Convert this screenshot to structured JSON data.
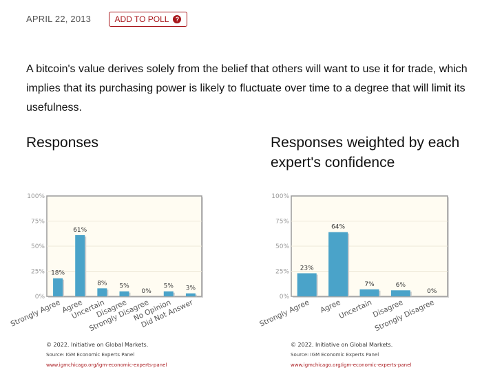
{
  "header": {
    "date": "APRIL 22, 2013",
    "add_to_poll": "ADD TO POLL"
  },
  "statement": "A bitcoin's value derives solely from the belief that others will want to use it for trade, which implies that its purchasing power is likely to fluctuate over time to a degree that will limit its usefulness.",
  "colors": {
    "bar": "#4aa3c9",
    "accent": "#a8161b",
    "plot_bg": "#fffcf2"
  },
  "chart_data": [
    {
      "type": "bar",
      "title": "Responses",
      "categories": [
        "Strongly Agree",
        "Agree",
        "Uncertain",
        "Disagree",
        "Strongly Disagree",
        "No Opinion",
        "Did Not Answer"
      ],
      "values": [
        18,
        61,
        8,
        5,
        0,
        5,
        3
      ],
      "ylim": [
        0,
        100
      ],
      "yticks": [
        "0%",
        "25%",
        "50%",
        "75%",
        "100%"
      ],
      "value_suffix": "%",
      "footer": {
        "copyright": "© 2022. Initiative on Global Markets.",
        "source": "Source: IGM Economic Experts Panel",
        "url": "www.igmchicago.org/igm-economic-experts-panel"
      }
    },
    {
      "type": "bar",
      "title": "Responses weighted by each expert's confidence",
      "categories": [
        "Strongly Agree",
        "Agree",
        "Uncertain",
        "Disagree",
        "Strongly Disagree"
      ],
      "values": [
        23,
        64,
        7,
        6,
        0
      ],
      "ylim": [
        0,
        100
      ],
      "yticks": [
        "0%",
        "25%",
        "50%",
        "75%",
        "100%"
      ],
      "value_suffix": "%",
      "footer": {
        "copyright": "© 2022. Initiative on Global Markets.",
        "source": "Source: IGM Economic Experts Panel",
        "url": "www.igmchicago.org/igm-economic-experts-panel"
      }
    }
  ]
}
